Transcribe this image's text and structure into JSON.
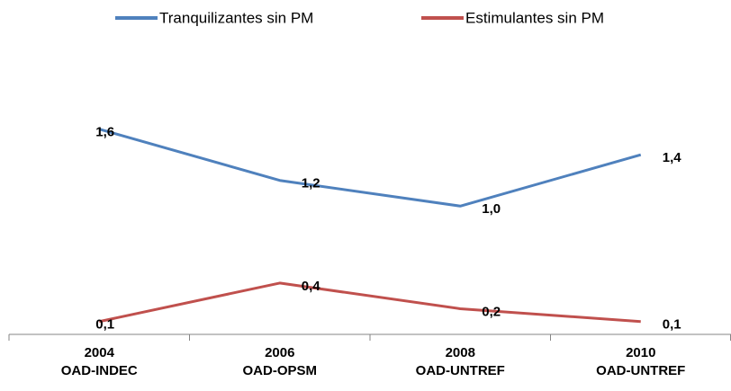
{
  "chart_data": {
    "type": "line",
    "categories": [
      [
        "2004",
        "OAD-INDEC"
      ],
      [
        "2006",
        "OAD-OPSM"
      ],
      [
        "2008",
        "OAD-UNTREF"
      ],
      [
        "2010",
        "OAD-UNTREF"
      ]
    ],
    "series": [
      {
        "name": "Tranquilizantes sin PM",
        "color": "#4f81bd",
        "values": [
          1.6,
          1.2,
          1.0,
          1.4
        ],
        "value_labels": [
          "1,6",
          "1,2",
          "1,0",
          "1,4"
        ]
      },
      {
        "name": "Estimulantes sin PM",
        "color": "#c0504d",
        "values": [
          0.1,
          0.4,
          0.2,
          0.1
        ],
        "value_labels": [
          "0,1",
          "0,4",
          "0,2",
          "0,1"
        ]
      }
    ],
    "ylim": [
      0,
      2.2
    ],
    "legend": "top"
  }
}
